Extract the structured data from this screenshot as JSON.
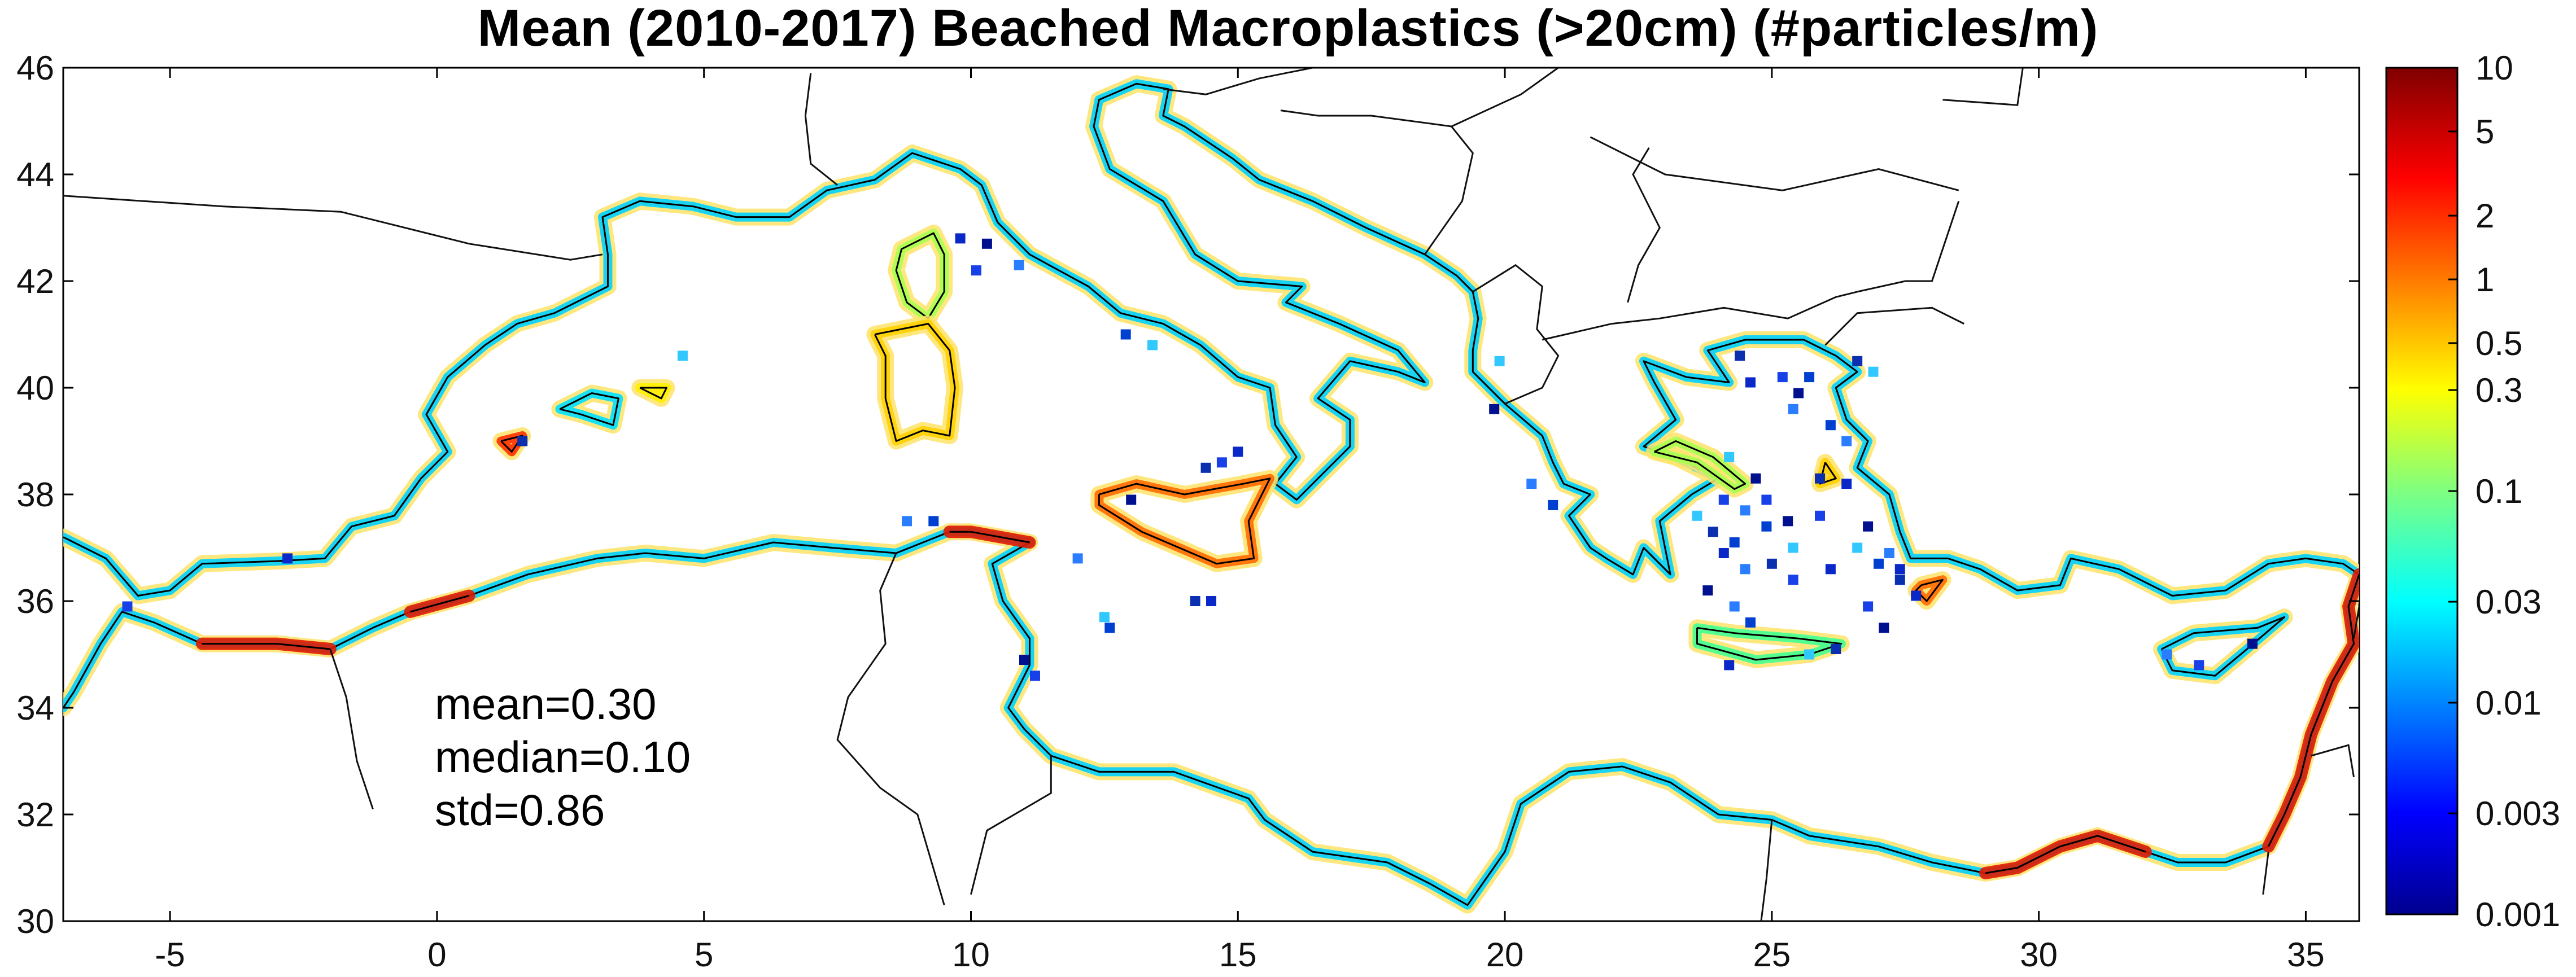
{
  "title": "Mean (2010-2017) Beached Macroplastics (>20cm) (#particles/m)",
  "axes": {
    "x_ticks": [
      "-5",
      "0",
      "5",
      "10",
      "15",
      "20",
      "25",
      "30",
      "35"
    ],
    "x_values": [
      -5,
      0,
      5,
      10,
      15,
      20,
      25,
      30,
      35
    ],
    "x_range": [
      -7,
      36
    ],
    "y_ticks": [
      "30",
      "32",
      "34",
      "36",
      "38",
      "40",
      "42",
      "44",
      "46"
    ],
    "y_values": [
      30,
      32,
      34,
      36,
      38,
      40,
      42,
      44,
      46
    ],
    "y_range": [
      30,
      46
    ]
  },
  "stats": {
    "mean": "mean=0.30",
    "median": "median=0.10",
    "std": "std=0.86"
  },
  "colorbar": {
    "labels": [
      "10",
      "5",
      "2",
      "1",
      "0.5",
      "0.3",
      "0.1",
      "0.03",
      "0.01",
      "0.003",
      "0.001"
    ],
    "values": [
      10,
      5,
      2,
      1,
      0.5,
      0.3,
      0.1,
      0.03,
      0.01,
      0.003,
      0.001
    ],
    "range": [
      0.001,
      10
    ],
    "scale": "log",
    "colormap": "jet"
  },
  "colors": {
    "coastline": "#000000",
    "borders": "#111111",
    "background": "#ffffff"
  }
}
